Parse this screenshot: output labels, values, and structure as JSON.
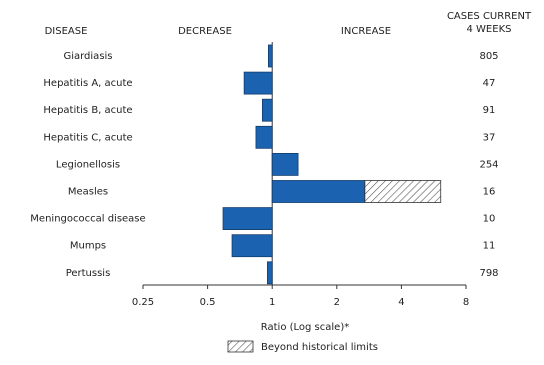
{
  "chart_data": {
    "type": "bar",
    "orientation": "horizontal",
    "column_headers": {
      "disease": "DISEASE",
      "decrease": "DECREASE",
      "increase": "INCREASE",
      "cases": [
        "CASES CURRENT",
        "4 WEEKS"
      ]
    },
    "categories": [
      "Giardiasis",
      "Hepatitis A, acute",
      "Hepatitis B, acute",
      "Hepatitis C, acute",
      "Legionellosis",
      "Measles",
      "Meningococcal disease",
      "Mumps",
      "Pertussis"
    ],
    "values": [
      0.96,
      0.74,
      0.9,
      0.84,
      1.32,
      6.1,
      0.59,
      0.65,
      0.95
    ],
    "historical_limits": [
      null,
      null,
      null,
      null,
      null,
      2.7,
      null,
      null,
      null
    ],
    "cases_current_4_weeks": [
      805,
      47,
      91,
      37,
      254,
      16,
      10,
      11,
      798
    ],
    "color": "#1b63b0",
    "beyond_color": "#ffffff",
    "xscale": "log",
    "xlim": [
      0.25,
      8
    ],
    "xticks": [
      0.25,
      0.5,
      1,
      2,
      4,
      8
    ],
    "baseline": 1,
    "xlabel": "Ratio (Log scale)*",
    "legend": {
      "label": "Beyond historical limits",
      "position": "bottom"
    }
  }
}
